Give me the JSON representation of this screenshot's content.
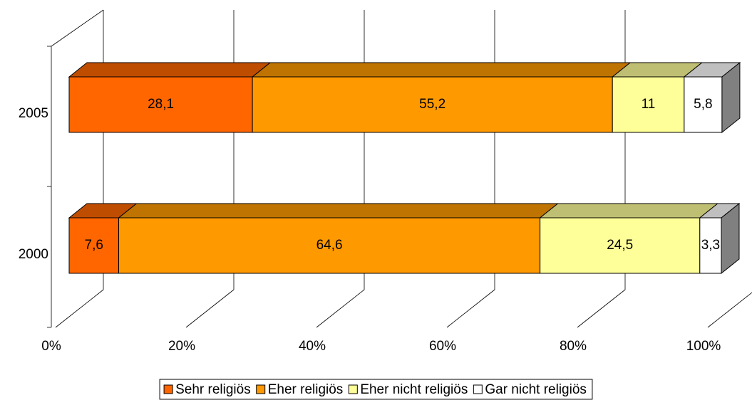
{
  "chart_data": {
    "type": "bar",
    "orientation": "horizontal",
    "stacked": true,
    "three_d": true,
    "categories": [
      "2005",
      "2000"
    ],
    "series": [
      {
        "name": "Sehr religiös",
        "color": "#FF6600",
        "values": [
          28.1,
          7.6
        ],
        "value_labels": [
          "28,1",
          "7,6"
        ]
      },
      {
        "name": "Eher religiös",
        "color": "#FF9900",
        "values": [
          55.2,
          64.6
        ],
        "value_labels": [
          "55,2",
          "64,6"
        ]
      },
      {
        "name": "Eher nicht religiös",
        "color": "#FFFF99",
        "values": [
          11,
          24.5
        ],
        "value_labels": [
          "11",
          "24,5"
        ]
      },
      {
        "name": "Gar nicht religiös",
        "color": "#FFFFFF",
        "values": [
          5.8,
          3.3
        ],
        "value_labels": [
          "5,8",
          "3,3"
        ]
      }
    ],
    "xlim": [
      0,
      100
    ],
    "xticks": [
      {
        "value": 0,
        "label": "0%"
      },
      {
        "value": 20,
        "label": "20%"
      },
      {
        "value": 40,
        "label": "40%"
      },
      {
        "value": 60,
        "label": "60%"
      },
      {
        "value": 80,
        "label": "80%"
      },
      {
        "value": 100,
        "label": "100%"
      }
    ],
    "grid": true,
    "legend": "bottom"
  }
}
